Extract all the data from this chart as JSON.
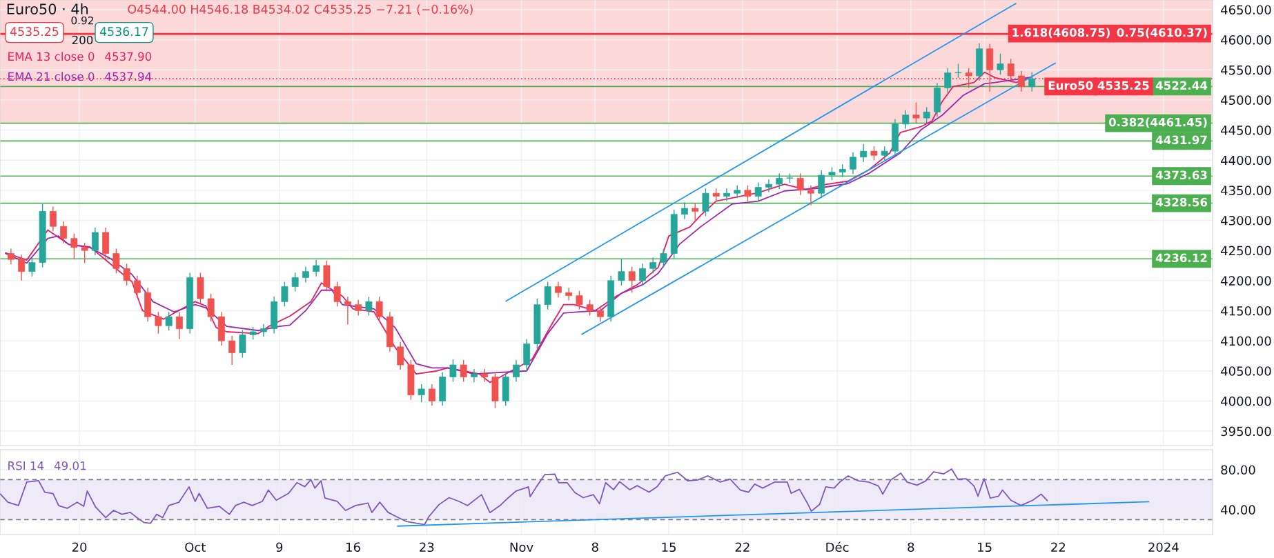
{
  "chart_data": [
    {
      "type": "candlestick",
      "title": "Euro50 · 4h",
      "subtitle": "O4544.00 H4546.18 B4534.02 C4535.25 −7.21 (−0.16%)",
      "x": [
        "2023-09-13T12:00",
        "2023-09-14T12:00",
        "2023-09-15T12:00",
        "2023-09-16T12:00",
        "2023-09-17T12:00",
        "2023-09-18T12:00",
        "2023-09-19T12:00",
        "2023-09-20T12:00",
        "2023-09-21T12:00",
        "2023-09-22T12:00",
        "2023-09-23T12:00",
        "2023-09-24T12:00",
        "2023-09-25T12:00",
        "2023-09-26T12:00",
        "2023-09-27T12:00",
        "2023-09-28T12:00",
        "2023-09-29T12:00",
        "2023-09-30T12:00",
        "2023-10-01T12:00",
        "2023-10-02T12:00",
        "2023-10-03T12:00",
        "2023-10-04T12:00",
        "2023-10-05T12:00",
        "2023-10-06T12:00",
        "2023-10-07T12:00",
        "2023-10-08T12:00",
        "2023-10-09T12:00",
        "2023-10-10T12:00",
        "2023-10-11T12:00",
        "2023-10-12T12:00",
        "2023-10-13T12:00",
        "2023-10-14T12:00",
        "2023-10-15T12:00",
        "2023-10-16T12:00",
        "2023-10-17T12:00",
        "2023-10-18T12:00",
        "2023-10-19T12:00",
        "2023-10-20T12:00",
        "2023-10-21T12:00",
        "2023-10-22T12:00",
        "2023-10-23T12:00",
        "2023-10-24T12:00",
        "2023-10-25T12:00",
        "2023-10-26T12:00",
        "2023-10-27T12:00",
        "2023-10-28T12:00",
        "2023-10-29T12:00",
        "2023-10-30T12:00",
        "2023-10-31T12:00",
        "2023-11-01T12:00",
        "2023-11-02T12:00",
        "2023-11-03T12:00",
        "2023-11-04T12:00",
        "2023-11-05T12:00",
        "2023-11-06T12:00",
        "2023-11-07T12:00",
        "2023-11-08T12:00",
        "2023-11-09T12:00",
        "2023-11-10T12:00",
        "2023-11-11T12:00",
        "2023-11-12T12:00",
        "2023-11-13T12:00",
        "2023-11-14T12:00",
        "2023-11-15T12:00",
        "2023-11-16T12:00",
        "2023-11-17T12:00",
        "2023-11-18T12:00",
        "2023-11-19T12:00",
        "2023-11-20T12:00",
        "2023-11-21T12:00",
        "2023-11-22T12:00",
        "2023-11-23T12:00",
        "2023-11-24T12:00",
        "2023-11-25T12:00",
        "2023-11-26T12:00",
        "2023-11-27T12:00",
        "2023-11-28T12:00",
        "2023-11-29T12:00",
        "2023-11-30T12:00",
        "2023-12-01T12:00",
        "2023-12-02T12:00",
        "2023-12-03T12:00",
        "2023-12-04T12:00",
        "2023-12-05T12:00",
        "2023-12-06T12:00",
        "2023-12-07T12:00",
        "2023-12-08T12:00",
        "2023-12-09T12:00",
        "2023-12-10T12:00",
        "2023-12-11T12:00",
        "2023-12-12T12:00",
        "2023-12-13T12:00",
        "2023-12-14T12:00",
        "2023-12-15T12:00",
        "2023-12-16T12:00",
        "2023-12-17T12:00",
        "2023-12-18T12:00",
        "2023-12-19T12:00"
      ],
      "ohlc": [
        [
          4245,
          4253,
          4227,
          4235
        ],
        [
          4235,
          4243,
          4200,
          4215
        ],
        [
          4215,
          4238,
          4207,
          4230
        ],
        [
          4230,
          4327,
          4222,
          4315
        ],
        [
          4315,
          4323,
          4282,
          4290
        ],
        [
          4290,
          4298,
          4262,
          4270
        ],
        [
          4270,
          4278,
          4235,
          4255
        ],
        [
          4255,
          4263,
          4229,
          4250
        ],
        [
          4250,
          4288,
          4242,
          4280
        ],
        [
          4280,
          4288,
          4237,
          4245
        ],
        [
          4245,
          4253,
          4212,
          4220
        ],
        [
          4220,
          4228,
          4192,
          4200
        ],
        [
          4200,
          4208,
          4172,
          4180
        ],
        [
          4180,
          4188,
          4132,
          4140
        ],
        [
          4140,
          4148,
          4112,
          4125
        ],
        [
          4125,
          4148,
          4117,
          4140
        ],
        [
          4140,
          4148,
          4103,
          4120
        ],
        [
          4120,
          4213,
          4112,
          4205
        ],
        [
          4205,
          4213,
          4162,
          4170
        ],
        [
          4170,
          4178,
          4132,
          4140
        ],
        [
          4140,
          4148,
          4092,
          4100
        ],
        [
          4100,
          4108,
          4060,
          4080
        ],
        [
          4080,
          4118,
          4072,
          4110
        ],
        [
          4110,
          4123,
          4102,
          4115
        ],
        [
          4115,
          4128,
          4107,
          4120
        ],
        [
          4120,
          4173,
          4112,
          4165
        ],
        [
          4165,
          4198,
          4157,
          4190
        ],
        [
          4190,
          4213,
          4182,
          4205
        ],
        [
          4205,
          4223,
          4197,
          4215
        ],
        [
          4215,
          4234,
          4207,
          4225
        ],
        [
          4225,
          4233,
          4182,
          4190
        ],
        [
          4190,
          4198,
          4157,
          4165
        ],
        [
          4165,
          4173,
          4127,
          4160
        ],
        [
          4160,
          4168,
          4142,
          4150
        ],
        [
          4150,
          4173,
          4142,
          4165
        ],
        [
          4165,
          4173,
          4132,
          4140
        ],
        [
          4140,
          4148,
          4082,
          4090
        ],
        [
          4090,
          4098,
          4052,
          4060
        ],
        [
          4060,
          4068,
          4002,
          4010
        ],
        [
          4010,
          4028,
          3998,
          4020
        ],
        [
          4020,
          4028,
          3992,
          4000
        ],
        [
          4000,
          4048,
          3992,
          4040
        ],
        [
          4040,
          4069,
          4032,
          4060
        ],
        [
          4060,
          4068,
          4032,
          4040
        ],
        [
          4040,
          4053,
          4031,
          4045
        ],
        [
          4045,
          4053,
          4032,
          4040
        ],
        [
          4040,
          4048,
          3988,
          4000
        ],
        [
          4000,
          4048,
          3992,
          4040
        ],
        [
          4040,
          4068,
          4032,
          4060
        ],
        [
          4060,
          4103,
          4052,
          4095
        ],
        [
          4095,
          4170,
          4087,
          4160
        ],
        [
          4160,
          4198,
          4152,
          4190
        ],
        [
          4190,
          4198,
          4172,
          4180
        ],
        [
          4180,
          4188,
          4167,
          4175
        ],
        [
          4175,
          4183,
          4152,
          4160
        ],
        [
          4160,
          4168,
          4142,
          4150
        ],
        [
          4150,
          4158,
          4132,
          4140
        ],
        [
          4140,
          4208,
          4132,
          4200
        ],
        [
          4200,
          4236,
          4192,
          4215
        ],
        [
          4215,
          4223,
          4180,
          4200
        ],
        [
          4200,
          4228,
          4192,
          4220
        ],
        [
          4220,
          4238,
          4212,
          4230
        ],
        [
          4230,
          4253,
          4222,
          4245
        ],
        [
          4245,
          4318,
          4237,
          4310
        ],
        [
          4310,
          4330,
          4302,
          4320
        ],
        [
          4320,
          4328,
          4300,
          4315
        ],
        [
          4315,
          4353,
          4307,
          4345
        ],
        [
          4345,
          4353,
          4332,
          4340
        ],
        [
          4340,
          4353,
          4332,
          4345
        ],
        [
          4345,
          4358,
          4337,
          4350
        ],
        [
          4350,
          4358,
          4332,
          4340
        ],
        [
          4340,
          4363,
          4332,
          4355
        ],
        [
          4355,
          4368,
          4347,
          4360
        ],
        [
          4360,
          4378,
          4352,
          4370
        ],
        [
          4370,
          4378,
          4362,
          4370
        ],
        [
          4370,
          4378,
          4342,
          4350
        ],
        [
          4350,
          4358,
          4325,
          4345
        ],
        [
          4345,
          4383,
          4337,
          4375
        ],
        [
          4375,
          4388,
          4367,
          4380
        ],
        [
          4380,
          4393,
          4372,
          4385
        ],
        [
          4385,
          4413,
          4377,
          4405
        ],
        [
          4405,
          4427,
          4397,
          4415
        ],
        [
          4415,
          4423,
          4400,
          4408
        ],
        [
          4408,
          4423,
          4400,
          4415
        ],
        [
          4415,
          4468,
          4407,
          4460
        ],
        [
          4460,
          4483,
          4452,
          4475
        ],
        [
          4475,
          4496,
          4462,
          4470
        ],
        [
          4470,
          4488,
          4462,
          4480
        ],
        [
          4480,
          4528,
          4472,
          4520
        ],
        [
          4520,
          4553,
          4512,
          4545
        ],
        [
          4545,
          4560,
          4537,
          4545
        ],
        [
          4545,
          4553,
          4520,
          4540
        ],
        [
          4540,
          4594,
          4532,
          4585
        ],
        [
          4585,
          4593,
          4514,
          4550
        ],
        [
          4550,
          4577,
          4542,
          4560
        ],
        [
          4560,
          4568,
          4532,
          4540
        ],
        [
          4540,
          4548,
          4514,
          4522
        ],
        [
          4522,
          4546.18,
          4514,
          4535.25
        ]
      ],
      "series": [
        {
          "name": "EMA 13 close 0",
          "type": "line",
          "color": "#e91e63",
          "x": [
            "2023-09-13",
            "2023-09-15",
            "2023-09-17",
            "2023-09-19",
            "2023-09-21",
            "2023-09-23",
            "2023-09-25",
            "2023-09-26",
            "2023-09-28",
            "2023-09-29",
            "2023-10-01",
            "2023-10-02",
            "2023-10-03",
            "2023-10-04",
            "2023-10-07",
            "2023-10-08",
            "2023-10-10",
            "2023-10-12",
            "2023-10-13",
            "2023-10-15",
            "2023-10-16",
            "2023-10-18",
            "2023-10-20",
            "2023-10-22",
            "2023-10-24",
            "2023-10-25",
            "2023-10-28",
            "2023-10-29",
            "2023-10-30",
            "2023-11-02",
            "2023-11-04",
            "2023-11-05",
            "2023-11-06",
            "2023-11-08",
            "2023-11-10",
            "2023-11-12",
            "2023-11-13",
            "2023-11-14",
            "2023-11-15",
            "2023-11-17",
            "2023-11-18",
            "2023-11-19T12:00",
            "2023-11-21",
            "2023-11-23T12:00",
            "2023-11-26",
            "2023-11-28",
            "2023-11-30",
            "2023-12-02",
            "2023-12-04",
            "2023-12-06",
            "2023-12-07",
            "2023-12-09",
            "2023-12-10",
            "2023-12-11",
            "2023-12-12",
            "2023-12-14",
            "2023-12-15",
            "2023-12-16",
            "2023-12-18",
            "2023-12-19T12:00"
          ],
          "values": [
            4246,
            4234,
            4284,
            4260,
            4256,
            4227,
            4198,
            4150,
            4136,
            4146,
            4165,
            4158,
            4122,
            4115,
            4112,
            4124,
            4141,
            4165,
            4196,
            4174,
            4153,
            4148,
            4089,
            4045,
            4050,
            4055,
            4045,
            4031,
            4040,
            4069,
            4131,
            4160,
            4160,
            4150,
            4174,
            4193,
            4207,
            4222,
            4274,
            4289,
            4308,
            4332,
            4337,
            4346,
            4360,
            4351,
            4360,
            4365,
            4384,
            4412,
            4446,
            4456,
            4465,
            4498,
            4522,
            4529,
            4546,
            4537,
            4529,
            4538
          ]
        },
        {
          "name": "EMA 21 close 0",
          "type": "line",
          "color": "#9c27b0",
          "x": [
            "2023-09-13",
            "2023-09-15",
            "2023-09-17",
            "2023-09-18",
            "2023-09-19",
            "2023-09-21",
            "2023-09-23",
            "2023-09-25",
            "2023-09-27",
            "2023-09-29",
            "2023-10-01",
            "2023-10-02",
            "2023-10-04",
            "2023-10-07",
            "2023-10-09",
            "2023-10-10",
            "2023-10-11T12:00",
            "2023-10-13",
            "2023-10-14",
            "2023-10-15",
            "2023-10-18",
            "2023-10-20",
            "2023-10-22",
            "2023-10-23T12:00",
            "2023-10-25",
            "2023-10-27T12:00",
            "2023-11-01T12:00",
            "2023-11-03T12:00",
            "2023-11-05",
            "2023-11-06T12:00",
            "2023-11-08T12:00",
            "2023-11-10T12:00",
            "2023-11-12T12:00",
            "2023-11-14",
            "2023-11-16",
            "2023-11-18",
            "2023-11-21",
            "2023-11-23T12:00",
            "2023-11-26",
            "2023-11-29",
            "2023-12-02",
            "2023-12-04",
            "2023-12-07",
            "2023-12-09",
            "2023-12-11",
            "2023-12-13",
            "2023-12-15",
            "2023-12-16",
            "2023-12-19T12:00"
          ],
          "values": [
            4245,
            4229,
            4270,
            4274,
            4260,
            4255,
            4236,
            4210,
            4165,
            4148,
            4160,
            4155,
            4124,
            4117,
            4124,
            4126,
            4150,
            4184,
            4184,
            4160,
            4153,
            4122,
            4062,
            4055,
            4055,
            4045,
            4050,
            4112,
            4146,
            4148,
            4150,
            4179,
            4193,
            4212,
            4260,
            4289,
            4327,
            4332,
            4349,
            4353,
            4361,
            4378,
            4412,
            4451,
            4475,
            4508,
            4527,
            4529,
            4538
          ]
        },
        {
          "type": "line",
          "color": "#2196f3",
          "x": [
            "2023-10-30T13:00",
            "2023-12-17T23:00"
          ],
          "values": [
            4166,
            4660
          ]
        },
        {
          "type": "line",
          "color": "#2196f3",
          "x": [
            "2023-11-06T18:00",
            "2023-12-21T17:00"
          ],
          "values": [
            4111,
            4561
          ]
        }
      ],
      "xlim": [
        "2023-09-12T11:00",
        "2024-01-05T16:00"
      ],
      "ylim": [
        3926,
        4666
      ],
      "xticks": [
        {
          "value": "2023-09-20",
          "label": null
        },
        {
          "value": "2023-10-01",
          "label": null
        },
        {
          "value": "2023-10-09",
          "label": null
        },
        {
          "value": "2023-10-16",
          "label": null
        },
        {
          "value": "2023-10-23",
          "label": null
        },
        {
          "value": "2023-11-01",
          "label": null
        },
        {
          "value": "2023-11-08",
          "label": null
        },
        {
          "value": "2023-11-15",
          "label": null
        },
        {
          "value": "2023-11-22",
          "label": null
        },
        {
          "value": "2023-12-01",
          "label": null
        },
        {
          "value": "2023-12-08",
          "label": null
        },
        {
          "value": "2023-12-15",
          "label": null
        },
        {
          "value": "2023-12-22",
          "label": null
        },
        {
          "value": "2024-01-01",
          "label": null
        }
      ],
      "yticks": [
        {
          "value": 3950,
          "label": "3950.00"
        },
        {
          "value": 4000,
          "label": "4000.00"
        },
        {
          "value": 4050,
          "label": "4050.00"
        },
        {
          "value": 4100,
          "label": "4100.00"
        },
        {
          "value": 4150,
          "label": "4150.00"
        },
        {
          "value": 4200,
          "label": "4200.00"
        },
        {
          "value": 4250,
          "label": "4250.00"
        },
        {
          "value": 4300,
          "label": "4300.00"
        },
        {
          "value": 4350,
          "label": "4350.00"
        },
        {
          "value": 4400,
          "label": "4400.00"
        },
        {
          "value": 4450,
          "label": "4450.00"
        },
        {
          "value": 4500,
          "label": "4500.00"
        },
        {
          "value": 4550,
          "label": "4550.00"
        },
        {
          "value": 4600,
          "label": "4600.00"
        },
        {
          "value": 4650,
          "label": "4650.00"
        }
      ],
      "ref_lines": [
        {
          "axis": "y",
          "value": 4610.37,
          "label": "0.75(4610.37)",
          "color": "#f23645"
        },
        {
          "axis": "y",
          "value": 4608.75,
          "label": "1.618(4608.75)",
          "color": "#f23645"
        },
        {
          "axis": "y",
          "value": 4522.44,
          "label": "4522.44",
          "color": "#4caf50"
        },
        {
          "axis": "y",
          "value": 4535.25,
          "label": "4535.25",
          "color": "#f23645",
          "line_style": "dotted"
        },
        {
          "axis": "y",
          "value": 4461.45,
          "label": "0.382(4461.45)",
          "color": "#4caf50"
        },
        {
          "axis": "y",
          "value": 4431.97,
          "label": "4431.97",
          "color": "#4caf50"
        },
        {
          "axis": "y",
          "value": 4373.63,
          "label": "4373.63",
          "color": "#4caf50"
        },
        {
          "axis": "y",
          "value": 4328.56,
          "label": "4328.56",
          "color": "#4caf50"
        },
        {
          "axis": "y",
          "value": 4236.12,
          "label": "4236.12",
          "color": "#4caf50"
        }
      ],
      "bands": [
        {
          "axis": "y",
          "from": 4461.45,
          "to": 4666,
          "color": "#fcd9d8"
        }
      ],
      "annotations": [
        "4535.25",
        "0.92",
        "200",
        "4536.17",
        "4537.90",
        "4537.94",
        "Euro50"
      ],
      "grid": true,
      "tick_labels": "y"
    },
    {
      "type": "line",
      "series": [
        {
          "name": "RSI 14",
          "color": "#7e57c2",
          "x": [
            "2023-09-12T12:00",
            "2023-09-13T05:00",
            "2023-09-14T05:00",
            "2023-09-15T00:00",
            "2023-09-16T03:00",
            "2023-09-16T17:00",
            "2023-09-17T12:00",
            "2023-09-18T01:00",
            "2023-09-18T20:00",
            "2023-09-19T19:00",
            "2023-09-20T10:00",
            "2023-09-20T18:00",
            "2023-09-21T13:00",
            "2023-09-22T12:00",
            "2023-09-23T06:00",
            "2023-09-24T01:00",
            "2023-09-24T20:00",
            "2023-09-25T14:00",
            "2023-09-26T04:00",
            "2023-09-26T18:00",
            "2023-09-27T08:00",
            "2023-09-27T22:00",
            "2023-09-28T12:00",
            "2023-09-29T11:00",
            "2023-09-30T10:00",
            "2023-10-01T00:00",
            "2023-10-01T09:00",
            "2023-10-02T04:00",
            "2023-10-03T07:00",
            "2023-10-04T06:00",
            "2023-10-04T20:00",
            "2023-10-05T15:00",
            "2023-10-06T10:00",
            "2023-10-07T09:00",
            "2023-10-07T23:00",
            "2023-10-08T17:00",
            "2023-10-09T21:00",
            "2023-10-10T16:00",
            "2023-10-11T10:00",
            "2023-10-12T00:00",
            "2023-10-12T09:00",
            "2023-10-12T23:00",
            "2023-10-13T08:00",
            "2023-10-14T12:00",
            "2023-10-15T07:00",
            "2023-10-16T06:00",
            "2023-10-17T10:00",
            "2023-10-17T19:00",
            "2023-10-18T13:00",
            "2023-10-19T08:00",
            "2023-10-20T02:00",
            "2023-10-21T02:00",
            "2023-10-22T06:00",
            "2023-10-22T19:00",
            "2023-10-23T05:00",
            "2023-10-24T04:00",
            "2023-10-25T03:00",
            "2023-10-26T02:00",
            "2023-10-26T21:00",
            "2023-10-28T05:00",
            "2023-10-29T00:00",
            "2023-10-29T23:00",
            "2023-10-30T17:00",
            "2023-10-31T12:00",
            "2023-11-01T16:00",
            "2023-11-01T20:00",
            "2023-11-02T10:00",
            "2023-11-03T05:00",
            "2023-11-04T04:00",
            "2023-11-04T13:00",
            "2023-11-05T08:00",
            "2023-11-06T02:00",
            "2023-11-06T21:00",
            "2023-11-07T20:00",
            "2023-11-08T10:00",
            "2023-11-09T00:00",
            "2023-11-09T18:00",
            "2023-11-10T08:00",
            "2023-11-11T07:00",
            "2023-11-12T00:00",
            "2023-11-13T03:00",
            "2023-11-13T21:00",
            "2023-11-14T16:00",
            "2023-11-15T20:00",
            "2023-11-16T19:00",
            "2023-11-17T18:00",
            "2023-11-18T17:00",
            "2023-11-19T21:00",
            "2023-11-20T20:00",
            "2023-11-21T19:00",
            "2023-11-22T14:00",
            "2023-11-23T04:00",
            "2023-11-23T22:00",
            "2023-11-25T02:00",
            "2023-11-26T06:00",
            "2023-11-26T15:00",
            "2023-11-27T10:00",
            "2023-11-28T04:00",
            "2023-11-28T13:00",
            "2023-11-29T08:00",
            "2023-11-29T22:00",
            "2023-11-30T17:00",
            "2023-12-01T06:00",
            "2023-12-02T01:00",
            "2023-12-03T00:00",
            "2023-12-03T23:00",
            "2023-12-04T22:00",
            "2023-12-05T08:00",
            "2023-12-06T02:00",
            "2023-12-07T01:00",
            "2023-12-07T15:00",
            "2023-12-08T14:00",
            "2023-12-09T09:00",
            "2023-12-10T04:00",
            "2023-12-11T03:00",
            "2023-12-11T21:00",
            "2023-12-12T11:00",
            "2023-12-13T06:00",
            "2023-12-14T00:00",
            "2023-12-14T09:00",
            "2023-12-14T23:00",
            "2023-12-15T13:00",
            "2023-12-16T08:00",
            "2023-12-16T17:00",
            "2023-12-17T12:00",
            "2023-12-18T11:00",
            "2023-12-19T14:00",
            "2023-12-20T09:00",
            "2023-12-20T23:00"
          ],
          "values": [
            55.5,
            47.4,
            44.1,
            67.7,
            69,
            57.5,
            56,
            44,
            41.3,
            47.4,
            43.3,
            58.7,
            42.5,
            32,
            39.2,
            35.3,
            37.2,
            31.1,
            27,
            26.3,
            35.3,
            32,
            44.1,
            47.4,
            62.8,
            48.2,
            56.3,
            41.3,
            43.3,
            35.3,
            44.1,
            47.4,
            44.1,
            48.2,
            59.6,
            49.4,
            56.3,
            67,
            63,
            70.1,
            61.6,
            68.9,
            51.5,
            48.2,
            39.2,
            44.1,
            46.5,
            37.2,
            47.4,
            37.2,
            33.2,
            28,
            26,
            25,
            33,
            45,
            52,
            48.2,
            44,
            55,
            37,
            44,
            51.5,
            58.7,
            62.8,
            53,
            62.8,
            75,
            75.5,
            67,
            67,
            57,
            52,
            55,
            46,
            67,
            60,
            68,
            60,
            64,
            57.5,
            62.8,
            73.8,
            77.4,
            68.9,
            69.7,
            73.8,
            67.7,
            70.5,
            59.6,
            57.5,
            65.6,
            61.6,
            67.7,
            67.7,
            56.3,
            60.4,
            46.5,
            38.4,
            45.3,
            62.8,
            61.6,
            67.7,
            73.8,
            68.9,
            67.7,
            63.7,
            55.5,
            69.7,
            76.6,
            67.7,
            64.5,
            68.5,
            77.8,
            75.8,
            80.7,
            70.5,
            70.9,
            63.7,
            53.5,
            70.9,
            51.5,
            53.5,
            59.6,
            49.4,
            44.1,
            49.4,
            55.5,
            49
          ]
        },
        {
          "type": "line",
          "color": "#2196f3",
          "x": [
            "2023-10-20T06:00",
            "2023-12-30T14:00"
          ],
          "values": [
            23.5,
            47.9
          ]
        }
      ],
      "xlim": [
        "2023-09-12T11:00",
        "2024-01-05T16:00"
      ],
      "ylim": [
        15,
        100
      ],
      "xticks": [
        {
          "value": "2023-09-20",
          "label": "20"
        },
        {
          "value": "2023-10-01",
          "label": "Oct"
        },
        {
          "value": "2023-10-09",
          "label": "9"
        },
        {
          "value": "2023-10-16",
          "label": "16"
        },
        {
          "value": "2023-10-23",
          "label": "23"
        },
        {
          "value": "2023-11-01",
          "label": "Nov"
        },
        {
          "value": "2023-11-08",
          "label": "8"
        },
        {
          "value": "2023-11-15",
          "label": "15"
        },
        {
          "value": "2023-11-22",
          "label": "22"
        },
        {
          "value": "2023-12-01",
          "label": "Déc"
        },
        {
          "value": "2023-12-08",
          "label": "8"
        },
        {
          "value": "2023-12-15",
          "label": "15"
        },
        {
          "value": "2023-12-22",
          "label": "22"
        },
        {
          "value": "2024-01-01",
          "label": "2024"
        }
      ],
      "yticks": [
        {
          "value": 40,
          "label": "40.00"
        },
        {
          "value": 80,
          "label": "80.00"
        }
      ],
      "ref_lines": [
        {
          "axis": "y",
          "value": 70,
          "color": "#787b86",
          "line_style": "dashed"
        },
        {
          "axis": "y",
          "value": 30,
          "color": "#787b86",
          "line_style": "dashed"
        }
      ],
      "bands": [
        {
          "axis": "y",
          "from": 30,
          "to": 70,
          "color": "#efeaf8"
        }
      ],
      "annotations": [
        "49.01"
      ],
      "grid": true
    }
  ]
}
